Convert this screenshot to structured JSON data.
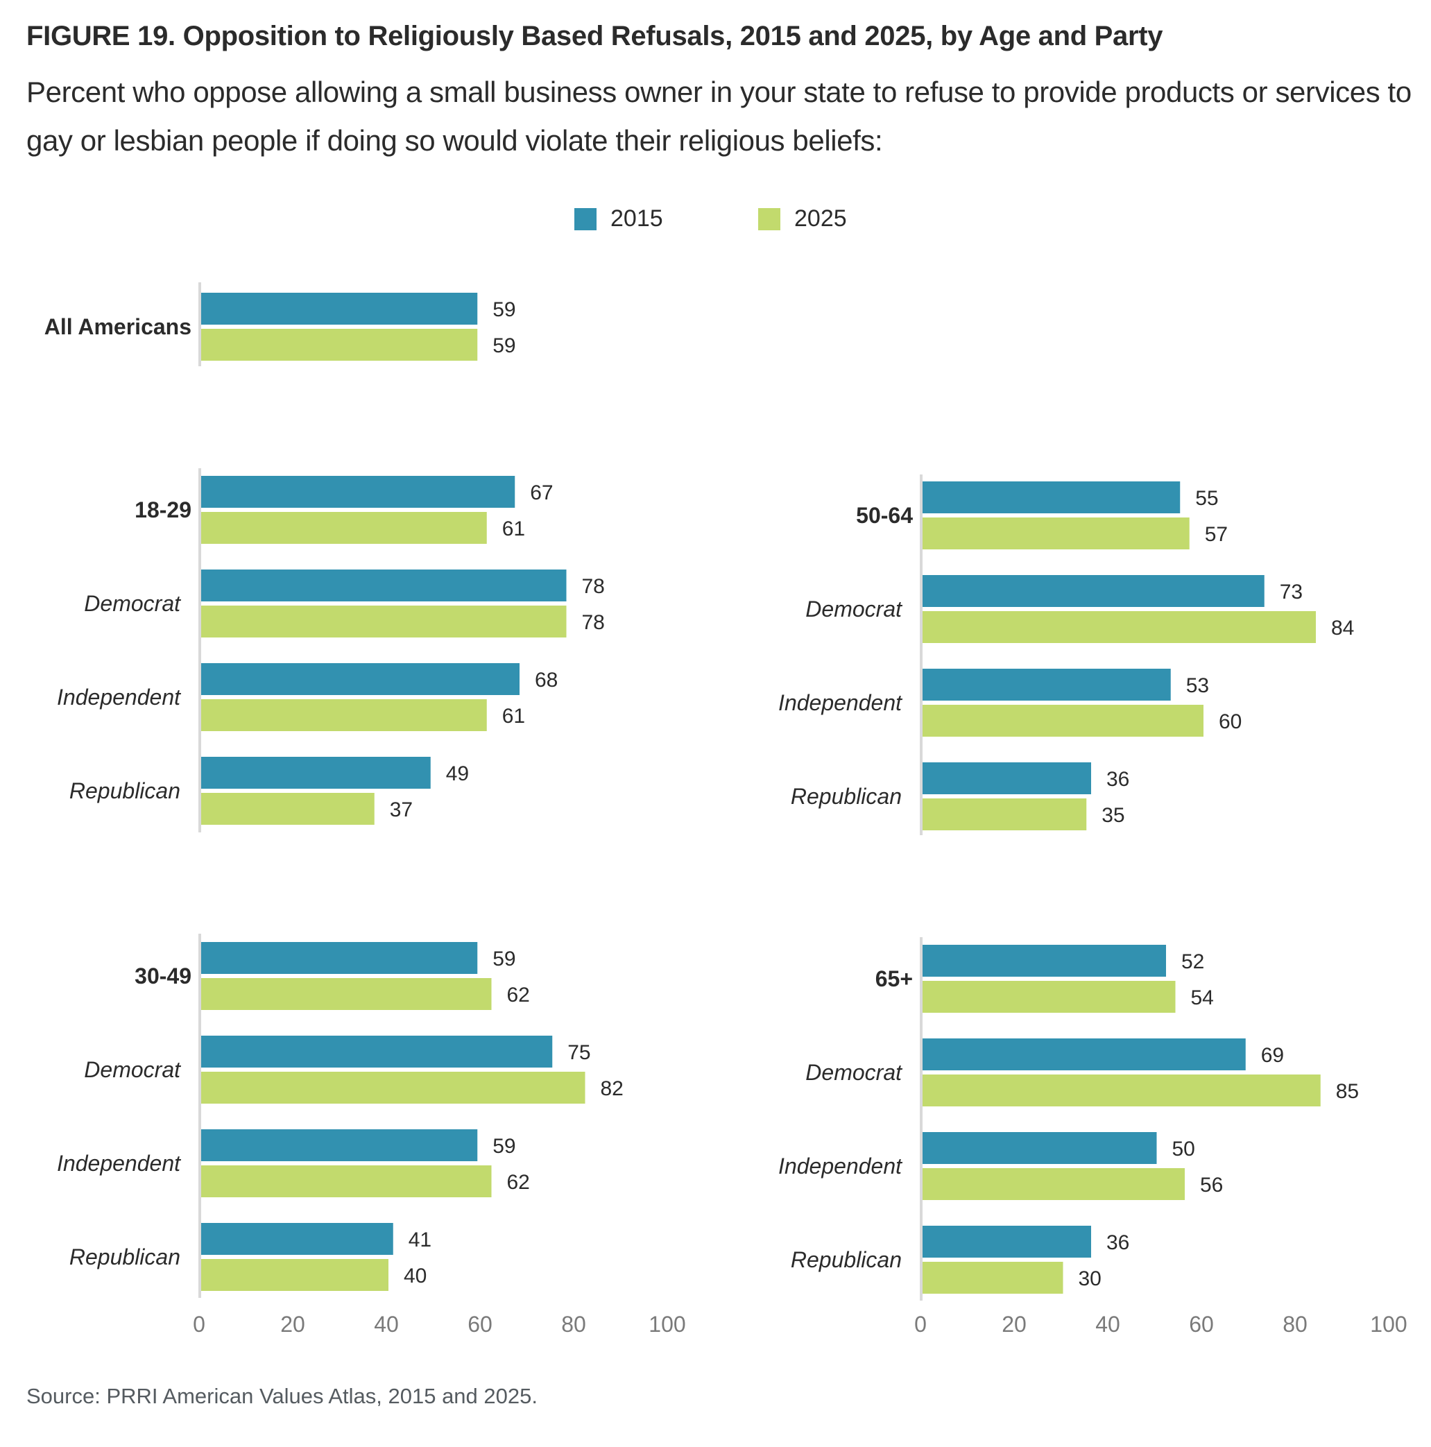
{
  "title": "FIGURE 19.  Opposition to Religiously Based Refusals, 2015 and 2025, by Age and Party",
  "subtitle": "Percent who oppose allowing a small business owner in your state to refuse to provide products or services to gay or lesbian people if doing so would violate their religious beliefs:",
  "source": "Source: PRRI American Values Atlas, 2015 and 2025.",
  "legend": [
    {
      "label": "2015",
      "color": "#3291b0"
    },
    {
      "label": "2025",
      "color": "#c2da6d"
    }
  ],
  "chart_data": {
    "type": "bar",
    "orientation": "horizontal",
    "title": "FIGURE 19.  Opposition to Religiously Based Refusals, 2015 and 2025, by Age and Party",
    "xlabel": "",
    "ylabel": "",
    "xlim": [
      0,
      100
    ],
    "xticks": [
      0,
      20,
      40,
      60,
      80,
      100
    ],
    "legend_position": "top-center",
    "grid": false,
    "series_names": [
      "2015",
      "2025"
    ],
    "series_colors": [
      "#3291b0",
      "#c2da6d"
    ],
    "panels": [
      {
        "id": "all",
        "categories": [
          {
            "label": "All Americans",
            "kind": "group",
            "values": [
              59,
              59
            ]
          }
        ]
      },
      {
        "id": "18-29",
        "categories": [
          {
            "label": "18-29",
            "kind": "group",
            "values": [
              67,
              61
            ]
          },
          {
            "label": "Democrat",
            "kind": "sub",
            "values": [
              78,
              78
            ]
          },
          {
            "label": "Independent",
            "kind": "sub",
            "values": [
              68,
              61
            ]
          },
          {
            "label": "Republican",
            "kind": "sub",
            "values": [
              49,
              37
            ]
          }
        ]
      },
      {
        "id": "50-64",
        "categories": [
          {
            "label": "50-64",
            "kind": "group",
            "values": [
              55,
              57
            ]
          },
          {
            "label": "Democrat",
            "kind": "sub",
            "values": [
              73,
              84
            ]
          },
          {
            "label": "Independent",
            "kind": "sub",
            "values": [
              53,
              60
            ]
          },
          {
            "label": "Republican",
            "kind": "sub",
            "values": [
              36,
              35
            ]
          }
        ]
      },
      {
        "id": "30-49",
        "categories": [
          {
            "label": "30-49",
            "kind": "group",
            "values": [
              59,
              62
            ]
          },
          {
            "label": "Democrat",
            "kind": "sub",
            "values": [
              75,
              82
            ]
          },
          {
            "label": "Independent",
            "kind": "sub",
            "values": [
              59,
              62
            ]
          },
          {
            "label": "Republican",
            "kind": "sub",
            "values": [
              41,
              40
            ]
          }
        ]
      },
      {
        "id": "65+",
        "categories": [
          {
            "label": "65+",
            "kind": "group",
            "values": [
              52,
              54
            ]
          },
          {
            "label": "Democrat",
            "kind": "sub",
            "values": [
              69,
              85
            ]
          },
          {
            "label": "Independent",
            "kind": "sub",
            "values": [
              50,
              56
            ]
          },
          {
            "label": "Republican",
            "kind": "sub",
            "values": [
              36,
              30
            ]
          }
        ]
      }
    ]
  }
}
